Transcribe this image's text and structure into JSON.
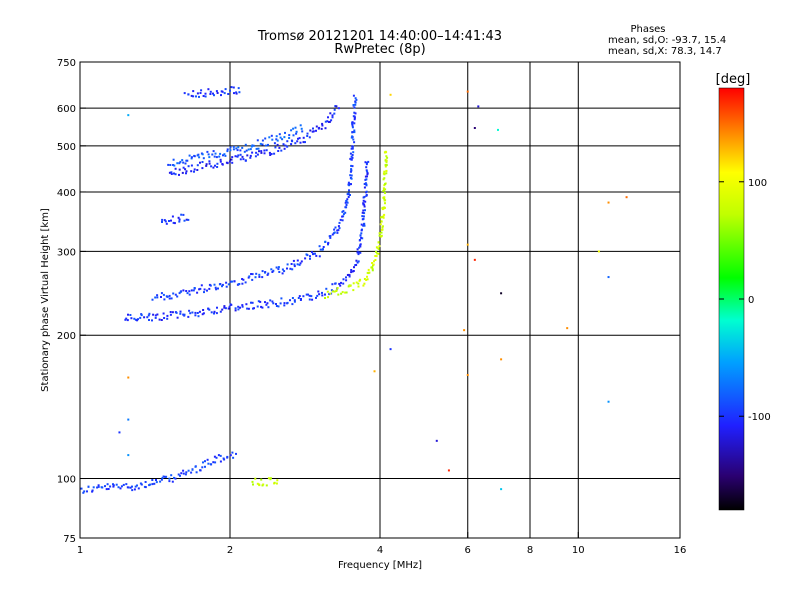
{
  "chart_data": {
    "type": "scatter",
    "title": "Tromsø 20121201 14:40:00–14:41:43",
    "subtitle": "RwPretec (8p)",
    "xlabel": "Frequency [MHz]",
    "ylabel": "Stationary phase Virtual Height [km]",
    "xscale": "log",
    "yscale": "log",
    "xlim": [
      1,
      16
    ],
    "ylim": [
      75,
      750
    ],
    "x_ticks": [
      1,
      2,
      4,
      6,
      8,
      10,
      16
    ],
    "y_ticks": [
      75,
      100,
      200,
      300,
      400,
      500,
      600,
      750
    ],
    "grid": true,
    "phase_stats": {
      "title": "Phases",
      "line_o": "mean, sd,O:  -93.7, 15.4",
      "line_x": "mean, sd,X:  78.3, 14.7"
    },
    "colorbar": {
      "label": "[deg]",
      "min": -180,
      "max": 180,
      "ticks": [
        100,
        0,
        -100
      ]
    },
    "traces": [
      {
        "phase": -95,
        "points": [
          [
            1.0,
            95
          ],
          [
            1.08,
            96
          ],
          [
            1.3,
            97
          ],
          [
            1.5,
            100
          ],
          [
            1.7,
            105
          ],
          [
            1.85,
            110
          ],
          [
            2.05,
            113
          ]
        ]
      },
      {
        "phase": -100,
        "points": [
          [
            1.22,
            218
          ],
          [
            1.4,
            219
          ],
          [
            1.6,
            222
          ],
          [
            1.9,
            228
          ],
          [
            2.3,
            233
          ],
          [
            2.7,
            238
          ],
          [
            3.1,
            246
          ],
          [
            3.4,
            262
          ],
          [
            3.6,
            290
          ],
          [
            3.68,
            340
          ],
          [
            3.72,
            400
          ],
          [
            3.75,
            470
          ]
        ]
      },
      {
        "phase": -95,
        "points": [
          [
            1.4,
            240
          ],
          [
            1.7,
            250
          ],
          [
            2.1,
            262
          ],
          [
            2.6,
            278
          ],
          [
            3.0,
            300
          ],
          [
            3.3,
            340
          ],
          [
            3.45,
            400
          ],
          [
            3.5,
            470
          ],
          [
            3.52,
            550
          ],
          [
            3.55,
            640
          ]
        ]
      },
      {
        "phase": -105,
        "points": [
          [
            1.5,
            440
          ],
          [
            1.75,
            455
          ],
          [
            2.05,
            470
          ],
          [
            2.4,
            490
          ],
          [
            2.8,
            520
          ],
          [
            3.1,
            560
          ],
          [
            3.3,
            610
          ]
        ]
      },
      {
        "phase": -85,
        "points": [
          [
            1.5,
            460
          ],
          [
            1.8,
            480
          ],
          [
            2.2,
            500
          ],
          [
            2.6,
            530
          ],
          [
            2.8,
            550
          ]
        ]
      },
      {
        "phase": 80,
        "points": [
          [
            3.1,
            245
          ],
          [
            3.4,
            250
          ],
          [
            3.7,
            260
          ],
          [
            3.9,
            290
          ],
          [
            4.0,
            330
          ],
          [
            4.05,
            380
          ],
          [
            4.08,
            450
          ],
          [
            4.1,
            500
          ]
        ]
      },
      {
        "phase": -100,
        "points": [
          [
            1.62,
            645
          ],
          [
            1.8,
            650
          ],
          [
            2.0,
            655
          ],
          [
            2.1,
            660
          ]
        ]
      },
      {
        "phase": -100,
        "points": [
          [
            1.45,
            345
          ],
          [
            1.55,
            352
          ],
          [
            1.65,
            358
          ]
        ]
      },
      {
        "phase": 80,
        "points": [
          [
            2.2,
            99
          ],
          [
            2.35,
            99
          ],
          [
            2.5,
            100
          ]
        ]
      }
    ],
    "scatter_points": [
      {
        "x": 1.25,
        "y": 580,
        "phase": -50
      },
      {
        "x": 6.0,
        "y": 650,
        "phase": 150
      },
      {
        "x": 6.3,
        "y": 605,
        "phase": -120
      },
      {
        "x": 6.2,
        "y": 545,
        "phase": -150
      },
      {
        "x": 6.9,
        "y": 540,
        "phase": -20
      },
      {
        "x": 11.5,
        "y": 380,
        "phase": 140
      },
      {
        "x": 12.5,
        "y": 390,
        "phase": 150
      },
      {
        "x": 11.0,
        "y": 300,
        "phase": 100
      },
      {
        "x": 11.5,
        "y": 265,
        "phase": -80
      },
      {
        "x": 7.0,
        "y": 245,
        "phase": -170
      },
      {
        "x": 9.5,
        "y": 207,
        "phase": 140
      },
      {
        "x": 7.0,
        "y": 178,
        "phase": 140
      },
      {
        "x": 6.2,
        "y": 288,
        "phase": 170
      },
      {
        "x": 6.0,
        "y": 310,
        "phase": 130
      },
      {
        "x": 4.2,
        "y": 187,
        "phase": -100
      },
      {
        "x": 3.9,
        "y": 168,
        "phase": 130
      },
      {
        "x": 5.2,
        "y": 120,
        "phase": -120
      },
      {
        "x": 5.5,
        "y": 104,
        "phase": 170
      },
      {
        "x": 6.0,
        "y": 165,
        "phase": 140
      },
      {
        "x": 7.0,
        "y": 95,
        "phase": -40
      },
      {
        "x": 11.5,
        "y": 145,
        "phase": -60
      },
      {
        "x": 1.25,
        "y": 163,
        "phase": 140
      },
      {
        "x": 1.25,
        "y": 133,
        "phase": -70
      },
      {
        "x": 1.2,
        "y": 125,
        "phase": -100
      },
      {
        "x": 1.25,
        "y": 112,
        "phase": -60
      },
      {
        "x": 4.2,
        "y": 640,
        "phase": 120
      },
      {
        "x": 5.9,
        "y": 205,
        "phase": 140
      }
    ]
  }
}
